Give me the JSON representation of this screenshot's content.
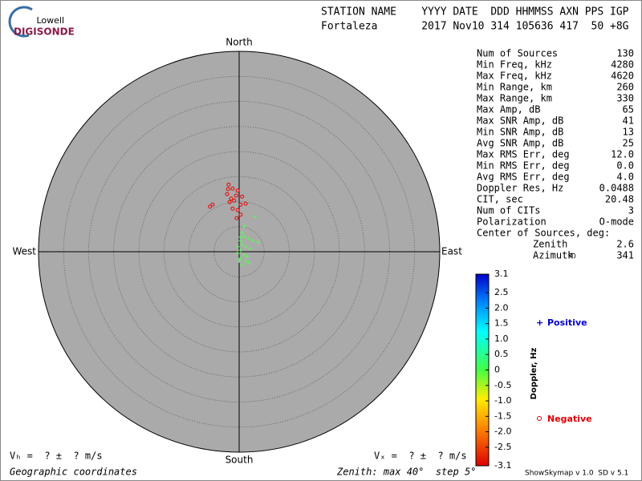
{
  "logo": {
    "top": "Lowell",
    "bottom": "DIGISONDE"
  },
  "header": {
    "labels": "STATION NAME    YYYY DATE  DDD HHMMSS AXN PPS IGP",
    "values": "Fortaleza       2017 Nov10 314 105636 417  50 +8G"
  },
  "stats": [
    [
      "Num of Sources",
      "130"
    ],
    [
      "Min Freq, kHz",
      "4280"
    ],
    [
      "Max Freq, kHz",
      "4620"
    ],
    [
      "Min Range, km",
      "260"
    ],
    [
      "Max Range, km",
      "330"
    ],
    [
      "Max Amp, dB",
      "65"
    ],
    [
      "Max SNR Amp, dB",
      "41"
    ],
    [
      "Min SNR Amp, dB",
      "13"
    ],
    [
      "Avg SNR Amp, dB",
      "25"
    ],
    [
      "Max RMS Err, deg",
      "12.0"
    ],
    [
      "Min RMS Err, deg",
      "0.0"
    ],
    [
      "Avg RMS Err, deg",
      "4.0"
    ],
    [
      "Doppler Res, Hz",
      "0.0488"
    ],
    [
      "CIT, sec",
      "20.48"
    ],
    [
      "Num of CITs",
      "3"
    ],
    [
      "Polarization",
      "O-mode"
    ]
  ],
  "center": {
    "title": "Center of Sources, deg:",
    "rows": [
      [
        "Zenith",
        "2.6"
      ],
      [
        "Azimuth",
        "341"
      ]
    ]
  },
  "footer": {
    "vh": "Vₕ =  ? ±  ? m/s",
    "vz": "Vₓ =  ? ±  ? m/s",
    "coords": "Geographic coordinates",
    "zenith": "Zenith: max 40°  step 5°",
    "version": "ShowSkymap v 1.0  SD v 5.1"
  },
  "chart_data": {
    "type": "polar_scatter",
    "directions": {
      "north": "North",
      "south": "South",
      "east": "East",
      "west": "West"
    },
    "rlim": [
      0,
      40
    ],
    "rticks": [
      5,
      10,
      15,
      20,
      25,
      30,
      35
    ],
    "series": [
      {
        "name": "Positive",
        "color": "#66ee66",
        "marker": "+",
        "x": [
          0.6,
          1.1,
          0.3,
          1.9,
          2.7,
          0.6,
          1.3,
          0.3,
          -0.3,
          1.0,
          1.6,
          0.3,
          1.3,
          0.6,
          1.9,
          0.0,
          3.2,
          3.8,
          1.0,
          0.3,
          2.2,
          -0.3
        ],
        "y": [
          3.8,
          3.0,
          2.2,
          2.6,
          2.2,
          1.4,
          1.0,
          0.3,
          -0.3,
          -0.6,
          -1.0,
          -1.3,
          -1.9,
          -2.6,
          -2.2,
          -1.8,
          7.0,
          1.9,
          5.1,
          2.9,
          0.6,
          1.0
        ]
      },
      {
        "name": "Negative",
        "color": "#ee0000",
        "marker": "o",
        "x": [
          -2.1,
          -1.3,
          -0.3,
          -2.4,
          -1.6,
          -1.0,
          0.6,
          0.3,
          -0.3,
          -1.3,
          -1.9,
          -5.8,
          -5.3,
          1.3,
          0.3,
          -0.5,
          -2.2,
          -0.6
        ],
        "y": [
          13.4,
          12.6,
          12.2,
          11.5,
          10.6,
          10.2,
          11.0,
          9.4,
          8.3,
          8.6,
          9.9,
          9.0,
          9.4,
          9.6,
          7.4,
          6.7,
          12.5,
          11.2
        ]
      }
    ],
    "colorbar": {
      "label": "Doppler, Hz",
      "clim": [
        -3.1,
        3.1
      ],
      "ticks": [
        3.1,
        2.5,
        {
          "value": 2,
          "label": "2.0"
        },
        1.5,
        {
          "value": 1,
          "label": "1.0"
        },
        0.5,
        0,
        -0.5,
        {
          "value": -1,
          "label": "-1.0"
        },
        -1.5,
        {
          "value": -2,
          "label": "-2.0"
        },
        -2.5,
        -3.1
      ]
    }
  }
}
